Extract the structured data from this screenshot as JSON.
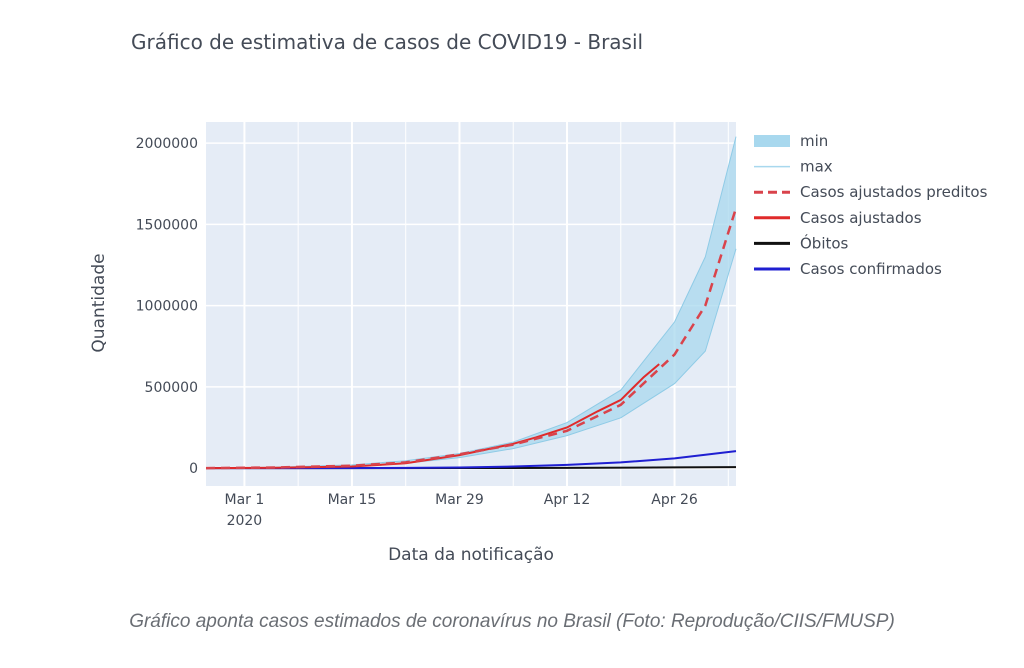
{
  "chart_data": {
    "type": "line",
    "title": "Gráfico de estimativa de casos de COVID19 - Brasil",
    "xlabel": "Data da notificação",
    "ylabel": "Quantidade",
    "x_ticks": [
      {
        "x": "2020-03-01",
        "label": "Mar 1",
        "sublabel": "2020"
      },
      {
        "x": "2020-03-15",
        "label": "Mar 15",
        "sublabel": ""
      },
      {
        "x": "2020-03-29",
        "label": "Mar 29",
        "sublabel": ""
      },
      {
        "x": "2020-04-12",
        "label": "Apr 12",
        "sublabel": ""
      },
      {
        "x": "2020-04-26",
        "label": "Apr 26",
        "sublabel": ""
      }
    ],
    "y_ticks": [
      {
        "y": 0,
        "label": "0"
      },
      {
        "y": 500000,
        "label": "500000"
      },
      {
        "y": 1000000,
        "label": "1000000"
      },
      {
        "y": 1500000,
        "label": "1500000"
      },
      {
        "y": 2000000,
        "label": "2000000"
      }
    ],
    "xlim": [
      "2020-02-25",
      "2020-05-04"
    ],
    "ylim": [
      -110000,
      2130000
    ],
    "grid": true,
    "legend_position": "right",
    "legend": [
      {
        "label": "min",
        "symbol": "band",
        "color": "#a8d8ee"
      },
      {
        "label": "max",
        "symbol": "thin-line",
        "color": "#a8d8ee"
      },
      {
        "label": "Casos ajustados preditos",
        "symbol": "dash",
        "color": "#d9434b"
      },
      {
        "label": "Casos ajustados",
        "symbol": "line",
        "color": "#e02a2a"
      },
      {
        "label": "Óbitos",
        "symbol": "line",
        "color": "#111111"
      },
      {
        "label": "Casos confirmados",
        "symbol": "line",
        "color": "#1f1fd1"
      }
    ],
    "series": [
      {
        "key": "min",
        "color": "#a8d8ee",
        "points": [
          [
            "2020-02-25",
            0
          ],
          [
            "2020-03-05",
            3000
          ],
          [
            "2020-03-15",
            12000
          ],
          [
            "2020-03-22",
            30000
          ],
          [
            "2020-03-29",
            65000
          ],
          [
            "2020-04-05",
            120000
          ],
          [
            "2020-04-12",
            200000
          ],
          [
            "2020-04-19",
            310000
          ],
          [
            "2020-04-26",
            520000
          ],
          [
            "2020-04-30",
            720000
          ],
          [
            "2020-05-04",
            1350000
          ]
        ]
      },
      {
        "key": "max",
        "color": "#a8d8ee",
        "points": [
          [
            "2020-02-25",
            0
          ],
          [
            "2020-03-05",
            5000
          ],
          [
            "2020-03-15",
            20000
          ],
          [
            "2020-03-22",
            45000
          ],
          [
            "2020-03-29",
            90000
          ],
          [
            "2020-04-05",
            160000
          ],
          [
            "2020-04-12",
            280000
          ],
          [
            "2020-04-19",
            480000
          ],
          [
            "2020-04-26",
            900000
          ],
          [
            "2020-04-30",
            1300000
          ],
          [
            "2020-05-04",
            2040000
          ]
        ]
      },
      {
        "key": "preditos",
        "color": "#d9434b",
        "points": [
          [
            "2020-02-25",
            0
          ],
          [
            "2020-03-05",
            4000
          ],
          [
            "2020-03-15",
            15000
          ],
          [
            "2020-03-22",
            35000
          ],
          [
            "2020-03-29",
            85000
          ],
          [
            "2020-04-05",
            145000
          ],
          [
            "2020-04-12",
            230000
          ],
          [
            "2020-04-19",
            390000
          ],
          [
            "2020-04-26",
            700000
          ],
          [
            "2020-04-30",
            1000000
          ],
          [
            "2020-05-04",
            1600000
          ]
        ]
      },
      {
        "key": "ajustados",
        "color": "#e02a2a",
        "points": [
          [
            "2020-02-25",
            0
          ],
          [
            "2020-03-05",
            2000
          ],
          [
            "2020-03-15",
            10000
          ],
          [
            "2020-03-22",
            30000
          ],
          [
            "2020-03-29",
            80000
          ],
          [
            "2020-04-05",
            150000
          ],
          [
            "2020-04-08",
            190000
          ],
          [
            "2020-04-12",
            250000
          ],
          [
            "2020-04-16",
            350000
          ],
          [
            "2020-04-19",
            420000
          ],
          [
            "2020-04-22",
            560000
          ],
          [
            "2020-04-24",
            640000
          ]
        ]
      },
      {
        "key": "obitos",
        "color": "#111111",
        "points": [
          [
            "2020-02-25",
            0
          ],
          [
            "2020-03-15",
            0
          ],
          [
            "2020-03-29",
            500
          ],
          [
            "2020-04-12",
            1500
          ],
          [
            "2020-04-26",
            4500
          ],
          [
            "2020-05-04",
            6500
          ]
        ]
      },
      {
        "key": "confirmados",
        "color": "#1f1fd1",
        "points": [
          [
            "2020-02-25",
            0
          ],
          [
            "2020-03-10",
            100
          ],
          [
            "2020-03-22",
            1500
          ],
          [
            "2020-03-29",
            4000
          ],
          [
            "2020-04-05",
            10000
          ],
          [
            "2020-04-12",
            20000
          ],
          [
            "2020-04-19",
            35000
          ],
          [
            "2020-04-26",
            60000
          ],
          [
            "2020-05-04",
            105000
          ]
        ]
      }
    ]
  },
  "caption": "Gráfico aponta casos estimados de coronavírus no Brasil (Foto: Reprodução/CIIS/FMUSP)"
}
